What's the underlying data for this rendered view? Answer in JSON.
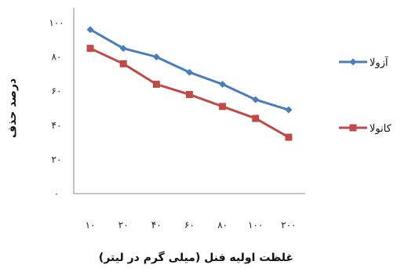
{
  "chart_data": {
    "type": "line",
    "categories": [
      "۱۰",
      "۲۰",
      "۴۰",
      "۶۰",
      "۸۰",
      "۱۰۰",
      "۲۰۰"
    ],
    "y_ticks": [
      "۰",
      "۲۰",
      "۴۰",
      "۶۰",
      "۸۰",
      "۱۰۰"
    ],
    "ylim": [
      0,
      100
    ],
    "xlabel": "غلظت اولیه فنل (میلی گرم در لیتر)",
    "ylabel": "درصد حذف",
    "grid": false,
    "legend_position": "right",
    "series": [
      {
        "name": "آزولا",
        "values": [
          96,
          85,
          80,
          71,
          64,
          55,
          49
        ],
        "color": "#4a7ebb",
        "marker": "diamond"
      },
      {
        "name": "کانولا",
        "values": [
          85,
          76,
          64,
          58,
          51,
          44,
          33
        ],
        "color": "#be4b48",
        "marker": "square"
      }
    ]
  }
}
